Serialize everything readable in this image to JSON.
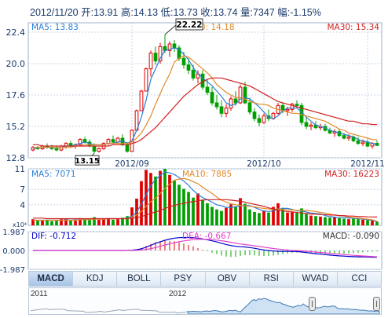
{
  "header": "2012/11/20 开:13.91 高:14.13 低:13.73 收:13.74 量:7347 幅:-1.15%",
  "colors": {
    "up": "#e00000",
    "down": "#00a000",
    "ma5": "#2a7fd4",
    "ma10": "#e08a2a",
    "ma30": "#d02020",
    "dif": "#0000cc",
    "dea": "#e040c8",
    "axis": "#1a3a6b",
    "grid": "#c8d4e4"
  },
  "price_panel": {
    "ma5_label": "MA5: 13.83",
    "ma10_label": "MA10: 14.18",
    "ma30_label": "MA30: 15.34",
    "high_marker": "22.22",
    "low_marker": "13.15"
  },
  "volume_panel": {
    "ma5_label": "MA5: 7071",
    "ma10_label": "MA10: 7885",
    "ma30_label": "MA30: 16223",
    "unit_label": "x10⁴"
  },
  "macd_panel": {
    "dif_label": "DIF: -0.712",
    "dea_label": "DEA: -0.667",
    "macd_label": "MACD: -0.090"
  },
  "tabs": [
    "MACD",
    "KDJ",
    "BOLL",
    "PSY",
    "OBV",
    "RSI",
    "WVAD",
    "CCI"
  ],
  "active_tab": "MACD",
  "navigator": {
    "year_labels": [
      "2011",
      "2012"
    ]
  },
  "chart_data": [
    {
      "type": "candlestick",
      "x_ticks": [
        "2012/09",
        "2012/10",
        "2012/11"
      ],
      "y_ticks": [
        "22.4",
        "20.0",
        "17.6",
        "15.2",
        "12.8"
      ],
      "ylim": [
        12.8,
        22.4
      ],
      "candles": [
        [
          13.4,
          13.7,
          13.3,
          13.6
        ],
        [
          13.6,
          13.7,
          13.4,
          13.5
        ],
        [
          13.5,
          13.8,
          13.4,
          13.7
        ],
        [
          13.7,
          13.9,
          13.5,
          13.6
        ],
        [
          13.6,
          13.8,
          13.4,
          13.5
        ],
        [
          13.5,
          13.7,
          13.3,
          13.4
        ],
        [
          13.4,
          13.8,
          13.3,
          13.7
        ],
        [
          13.7,
          14.0,
          13.5,
          13.9
        ],
        [
          13.9,
          14.1,
          13.6,
          13.7
        ],
        [
          13.7,
          13.9,
          13.5,
          13.8
        ],
        [
          13.8,
          14.3,
          13.7,
          14.2
        ],
        [
          14.2,
          14.4,
          13.9,
          14.0
        ],
        [
          14.0,
          14.2,
          13.6,
          13.7
        ],
        [
          13.7,
          13.9,
          13.15,
          13.3
        ],
        [
          13.3,
          13.6,
          13.2,
          13.5
        ],
        [
          13.5,
          14.0,
          13.4,
          13.9
        ],
        [
          13.9,
          14.3,
          13.8,
          14.2
        ],
        [
          14.2,
          14.5,
          13.9,
          14.0
        ],
        [
          14.0,
          14.4,
          13.9,
          14.3
        ],
        [
          14.3,
          14.6,
          13.7,
          13.8
        ],
        [
          13.8,
          14.0,
          13.2,
          13.3
        ],
        [
          13.3,
          15.0,
          13.3,
          14.9
        ],
        [
          14.9,
          16.5,
          14.9,
          16.4
        ],
        [
          16.4,
          18.0,
          16.4,
          17.9
        ],
        [
          17.9,
          19.7,
          17.9,
          19.6
        ],
        [
          19.6,
          21.0,
          19.0,
          20.8
        ],
        [
          20.8,
          21.3,
          19.9,
          20.2
        ],
        [
          20.2,
          21.6,
          20.0,
          21.3
        ],
        [
          21.3,
          22.22,
          20.8,
          21.0
        ],
        [
          21.0,
          21.7,
          20.5,
          21.5
        ],
        [
          21.5,
          21.8,
          20.9,
          21.2
        ],
        [
          21.2,
          21.4,
          20.2,
          20.4
        ],
        [
          20.4,
          20.9,
          19.6,
          19.9
        ],
        [
          19.9,
          20.4,
          19.2,
          19.5
        ],
        [
          19.5,
          19.9,
          18.7,
          18.9
        ],
        [
          18.9,
          19.5,
          18.5,
          19.2
        ],
        [
          19.2,
          19.5,
          18.0,
          18.2
        ],
        [
          18.2,
          18.8,
          17.6,
          17.8
        ],
        [
          17.8,
          18.2,
          16.8,
          17.0
        ],
        [
          17.0,
          17.6,
          16.5,
          16.7
        ],
        [
          16.7,
          17.2,
          15.9,
          16.2
        ],
        [
          16.2,
          16.9,
          15.9,
          16.6
        ],
        [
          16.6,
          17.5,
          16.4,
          17.3
        ],
        [
          17.3,
          17.9,
          16.8,
          17.0
        ],
        [
          17.0,
          18.4,
          16.9,
          18.2
        ],
        [
          18.2,
          18.6,
          16.9,
          17.0
        ],
        [
          17.0,
          17.4,
          16.1,
          16.3
        ],
        [
          16.3,
          16.6,
          15.6,
          15.8
        ],
        [
          15.8,
          16.1,
          15.2,
          15.5
        ],
        [
          15.5,
          16.2,
          15.4,
          16.0
        ],
        [
          16.0,
          16.5,
          15.6,
          15.8
        ],
        [
          15.8,
          16.3,
          15.7,
          16.2
        ],
        [
          16.2,
          17.0,
          16.1,
          16.8
        ],
        [
          16.8,
          17.0,
          16.2,
          16.4
        ],
        [
          16.4,
          16.7,
          16.0,
          16.5
        ],
        [
          16.5,
          17.0,
          16.3,
          16.9
        ],
        [
          16.9,
          17.2,
          16.6,
          16.8
        ],
        [
          16.8,
          17.0,
          15.3,
          15.5
        ],
        [
          15.5,
          15.9,
          15.0,
          15.2
        ],
        [
          15.2,
          15.5,
          14.9,
          15.3
        ],
        [
          15.3,
          15.6,
          15.0,
          15.1
        ],
        [
          15.1,
          15.4,
          14.9,
          15.2
        ],
        [
          15.2,
          15.4,
          14.8,
          14.9
        ],
        [
          14.9,
          15.1,
          14.6,
          14.7
        ],
        [
          14.7,
          15.0,
          14.4,
          14.8
        ],
        [
          14.8,
          15.0,
          14.4,
          14.5
        ],
        [
          14.5,
          14.7,
          14.2,
          14.3
        ],
        [
          14.3,
          14.6,
          14.1,
          14.4
        ],
        [
          14.4,
          14.5,
          14.0,
          14.1
        ],
        [
          14.1,
          14.4,
          13.8,
          13.9
        ],
        [
          13.9,
          14.2,
          13.7,
          14.0
        ],
        [
          14.0,
          14.2,
          13.6,
          13.7
        ],
        [
          13.7,
          14.0,
          13.5,
          13.9
        ],
        [
          13.91,
          14.13,
          13.73,
          13.74
        ]
      ],
      "ma5": [
        13.5,
        13.6,
        13.6,
        13.6,
        13.6,
        13.6,
        13.6,
        13.7,
        13.7,
        13.8,
        13.9,
        14.0,
        13.9,
        13.8,
        13.8,
        13.8,
        13.9,
        13.9,
        14.0,
        14.1,
        13.9,
        14.1,
        14.9,
        15.9,
        17.2,
        18.8,
        19.6,
        20.4,
        21.0,
        21.1,
        21.2,
        21.1,
        20.7,
        20.3,
        19.7,
        19.2,
        18.9,
        18.6,
        18.3,
        17.9,
        17.5,
        17.0,
        16.8,
        16.9,
        17.3,
        17.4,
        17.3,
        17.0,
        16.7,
        16.3,
        15.9,
        15.8,
        16.0,
        16.4,
        16.6,
        16.6,
        16.6,
        16.3,
        15.9,
        15.6,
        15.3,
        15.2,
        15.1,
        14.9,
        14.8,
        14.7,
        14.6,
        14.5,
        14.4,
        14.2,
        14.1,
        14.0,
        13.9,
        13.83
      ],
      "ma10": [
        13.6,
        13.6,
        13.6,
        13.6,
        13.6,
        13.6,
        13.6,
        13.6,
        13.6,
        13.7,
        13.7,
        13.8,
        13.8,
        13.8,
        13.8,
        13.8,
        13.9,
        13.9,
        13.9,
        13.9,
        13.9,
        14.0,
        14.3,
        14.7,
        15.3,
        16.0,
        16.9,
        17.7,
        18.5,
        19.2,
        20.1,
        20.4,
        20.6,
        20.5,
        20.2,
        19.9,
        19.6,
        19.3,
        18.9,
        18.4,
        18.1,
        17.8,
        17.6,
        17.4,
        17.4,
        17.3,
        17.1,
        17.0,
        16.9,
        16.9,
        16.8,
        16.6,
        16.5,
        16.4,
        16.3,
        16.2,
        16.2,
        16.1,
        16.0,
        15.9,
        15.8,
        15.7,
        15.6,
        15.4,
        15.2,
        15.0,
        14.9,
        14.7,
        14.6,
        14.5,
        14.4,
        14.3,
        14.2,
        14.18
      ],
      "ma30": [
        13.8,
        13.8,
        13.7,
        13.7,
        13.7,
        13.7,
        13.7,
        13.7,
        13.7,
        13.7,
        13.7,
        13.7,
        13.7,
        13.7,
        13.7,
        13.7,
        13.7,
        13.8,
        13.8,
        13.8,
        13.8,
        13.9,
        14.0,
        14.2,
        14.5,
        14.8,
        15.1,
        15.5,
        15.9,
        16.3,
        16.7,
        17.1,
        17.5,
        17.8,
        18.1,
        18.4,
        18.6,
        18.8,
        18.9,
        18.9,
        18.9,
        18.8,
        18.7,
        18.6,
        18.5,
        18.4,
        18.3,
        18.1,
        17.9,
        17.7,
        17.5,
        17.3,
        17.1,
        17.0,
        16.9,
        16.8,
        16.7,
        16.6,
        16.5,
        16.4,
        16.3,
        16.2,
        16.1,
        16.0,
        15.9,
        15.8,
        15.7,
        15.6,
        15.6,
        15.5,
        15.4,
        15.4,
        15.35,
        15.34
      ]
    },
    {
      "type": "bar",
      "name": "volume",
      "y_ticks": [
        "11",
        "7",
        "4"
      ],
      "ylim": [
        0,
        11
      ],
      "values": [
        1.2,
        0.9,
        1.0,
        1.1,
        0.8,
        0.9,
        1.2,
        1.3,
        1.0,
        0.9,
        1.4,
        1.2,
        1.3,
        1.6,
        1.1,
        1.2,
        1.4,
        1.1,
        1.2,
        1.5,
        1.8,
        3.5,
        5.2,
        8.6,
        10.8,
        10.2,
        9.5,
        10.6,
        11.0,
        9.8,
        8.7,
        7.9,
        7.1,
        6.5,
        5.4,
        6.2,
        5.0,
        4.3,
        3.6,
        3.1,
        2.8,
        3.4,
        4.1,
        3.7,
        5.3,
        4.2,
        3.1,
        2.6,
        2.4,
        2.9,
        2.5,
        3.6,
        4.3,
        3.4,
        2.5,
        2.7,
        2.4,
        3.3,
        2.2,
        1.9,
        1.8,
        1.7,
        1.6,
        1.5,
        1.6,
        1.4,
        1.3,
        1.2,
        1.3,
        1.2,
        1.1,
        1.0,
        0.9,
        0.73
      ],
      "ma5": [
        1.0,
        1.0,
        1.0,
        1.0,
        1.0,
        1.0,
        1.0,
        1.1,
        1.0,
        1.1,
        1.1,
        1.2,
        1.2,
        1.3,
        1.3,
        1.3,
        1.3,
        1.3,
        1.3,
        1.3,
        1.4,
        1.8,
        2.6,
        4.1,
        6.0,
        7.7,
        8.9,
        9.7,
        10.4,
        10.2,
        9.9,
        9.3,
        8.6,
        7.8,
        6.8,
        6.0,
        5.4,
        5.0,
        4.5,
        4.0,
        3.8,
        3.5,
        3.5,
        3.6,
        3.8,
        3.9,
        3.8,
        3.5,
        3.1,
        2.8,
        2.7,
        2.8,
        3.1,
        3.3,
        3.3,
        3.1,
        2.8,
        2.8,
        2.6,
        2.4,
        2.3,
        2.2,
        1.9,
        1.7,
        1.6,
        1.5,
        1.5,
        1.4,
        1.4,
        1.3,
        1.2,
        1.1,
        1.0,
        0.71
      ],
      "ma10": [
        1.0,
        1.0,
        1.0,
        1.0,
        1.0,
        1.0,
        1.0,
        1.0,
        1.0,
        1.0,
        1.1,
        1.1,
        1.1,
        1.2,
        1.2,
        1.2,
        1.3,
        1.3,
        1.3,
        1.3,
        1.3,
        1.6,
        2.0,
        2.7,
        3.7,
        4.6,
        5.3,
        6.2,
        7.2,
        8.0,
        8.8,
        9.0,
        9.1,
        8.9,
        8.5,
        8.1,
        7.4,
        6.8,
        6.2,
        5.5,
        4.9,
        4.5,
        4.2,
        4.0,
        3.9,
        3.8,
        3.7,
        3.6,
        3.4,
        3.3,
        3.2,
        3.1,
        3.2,
        3.1,
        3.0,
        3.0,
        2.9,
        2.9,
        2.9,
        2.8,
        2.7,
        2.5,
        2.4,
        2.2,
        2.0,
        1.9,
        1.8,
        1.6,
        1.5,
        1.4,
        1.3,
        1.2,
        1.1,
        0.79
      ],
      "ma30": [
        1.4,
        1.4,
        1.4,
        1.3,
        1.3,
        1.3,
        1.3,
        1.3,
        1.3,
        1.3,
        1.3,
        1.3,
        1.3,
        1.3,
        1.3,
        1.3,
        1.3,
        1.3,
        1.3,
        1.3,
        1.3,
        1.4,
        1.5,
        1.7,
        2.0,
        2.3,
        2.6,
        2.9,
        3.3,
        3.6,
        3.9,
        4.1,
        4.3,
        4.5,
        4.6,
        4.8,
        4.9,
        5.0,
        5.0,
        5.0,
        5.0,
        5.0,
        4.9,
        4.8,
        4.7,
        4.5,
        4.3,
        4.1,
        3.9,
        3.7,
        3.4,
        3.2,
        3.0,
        2.8,
        2.7,
        2.6,
        2.5,
        2.4,
        2.3,
        2.2,
        2.2,
        2.1,
        2.1,
        2.0,
        2.0,
        1.9,
        1.9,
        1.8,
        1.8,
        1.7,
        1.7,
        1.65,
        1.63,
        1.62
      ]
    },
    {
      "type": "line",
      "name": "macd",
      "y_ticks": [
        "1.987",
        "0.000",
        "-1.987"
      ],
      "ylim": [
        -1.987,
        1.987
      ],
      "dif": [
        0.0,
        0.0,
        0.0,
        0.0,
        0.0,
        0.0,
        0.0,
        0.0,
        0.0,
        0.0,
        0.0,
        0.0,
        0.0,
        0.0,
        0.0,
        0.0,
        0.0,
        0.0,
        0.0,
        0.0,
        0.01,
        0.03,
        0.08,
        0.18,
        0.35,
        0.55,
        0.75,
        0.92,
        1.08,
        1.2,
        1.3,
        1.35,
        1.37,
        1.37,
        1.35,
        1.3,
        1.22,
        1.13,
        1.02,
        0.9,
        0.76,
        0.63,
        0.52,
        0.44,
        0.4,
        0.37,
        0.31,
        0.23,
        0.14,
        0.06,
        -0.01,
        -0.06,
        -0.08,
        -0.09,
        -0.1,
        -0.11,
        -0.12,
        -0.16,
        -0.22,
        -0.28,
        -0.34,
        -0.39,
        -0.44,
        -0.49,
        -0.53,
        -0.57,
        -0.6,
        -0.63,
        -0.65,
        -0.67,
        -0.68,
        -0.69,
        -0.7,
        -0.712
      ],
      "dea": [
        0.0,
        0.0,
        0.0,
        0.0,
        0.0,
        0.0,
        0.0,
        0.0,
        0.0,
        0.0,
        0.0,
        0.0,
        0.0,
        0.0,
        0.0,
        0.0,
        0.0,
        0.0,
        0.0,
        0.0,
        0.0,
        0.01,
        0.02,
        0.05,
        0.11,
        0.2,
        0.31,
        0.44,
        0.57,
        0.7,
        0.82,
        0.92,
        1.01,
        1.08,
        1.14,
        1.17,
        1.18,
        1.17,
        1.14,
        1.09,
        1.03,
        0.95,
        0.86,
        0.77,
        0.69,
        0.62,
        0.56,
        0.49,
        0.42,
        0.35,
        0.28,
        0.21,
        0.15,
        0.1,
        0.06,
        0.02,
        -0.01,
        -0.04,
        -0.08,
        -0.12,
        -0.17,
        -0.21,
        -0.26,
        -0.3,
        -0.35,
        -0.39,
        -0.43,
        -0.47,
        -0.51,
        -0.55,
        -0.58,
        -0.61,
        -0.64,
        -0.667
      ]
    }
  ]
}
